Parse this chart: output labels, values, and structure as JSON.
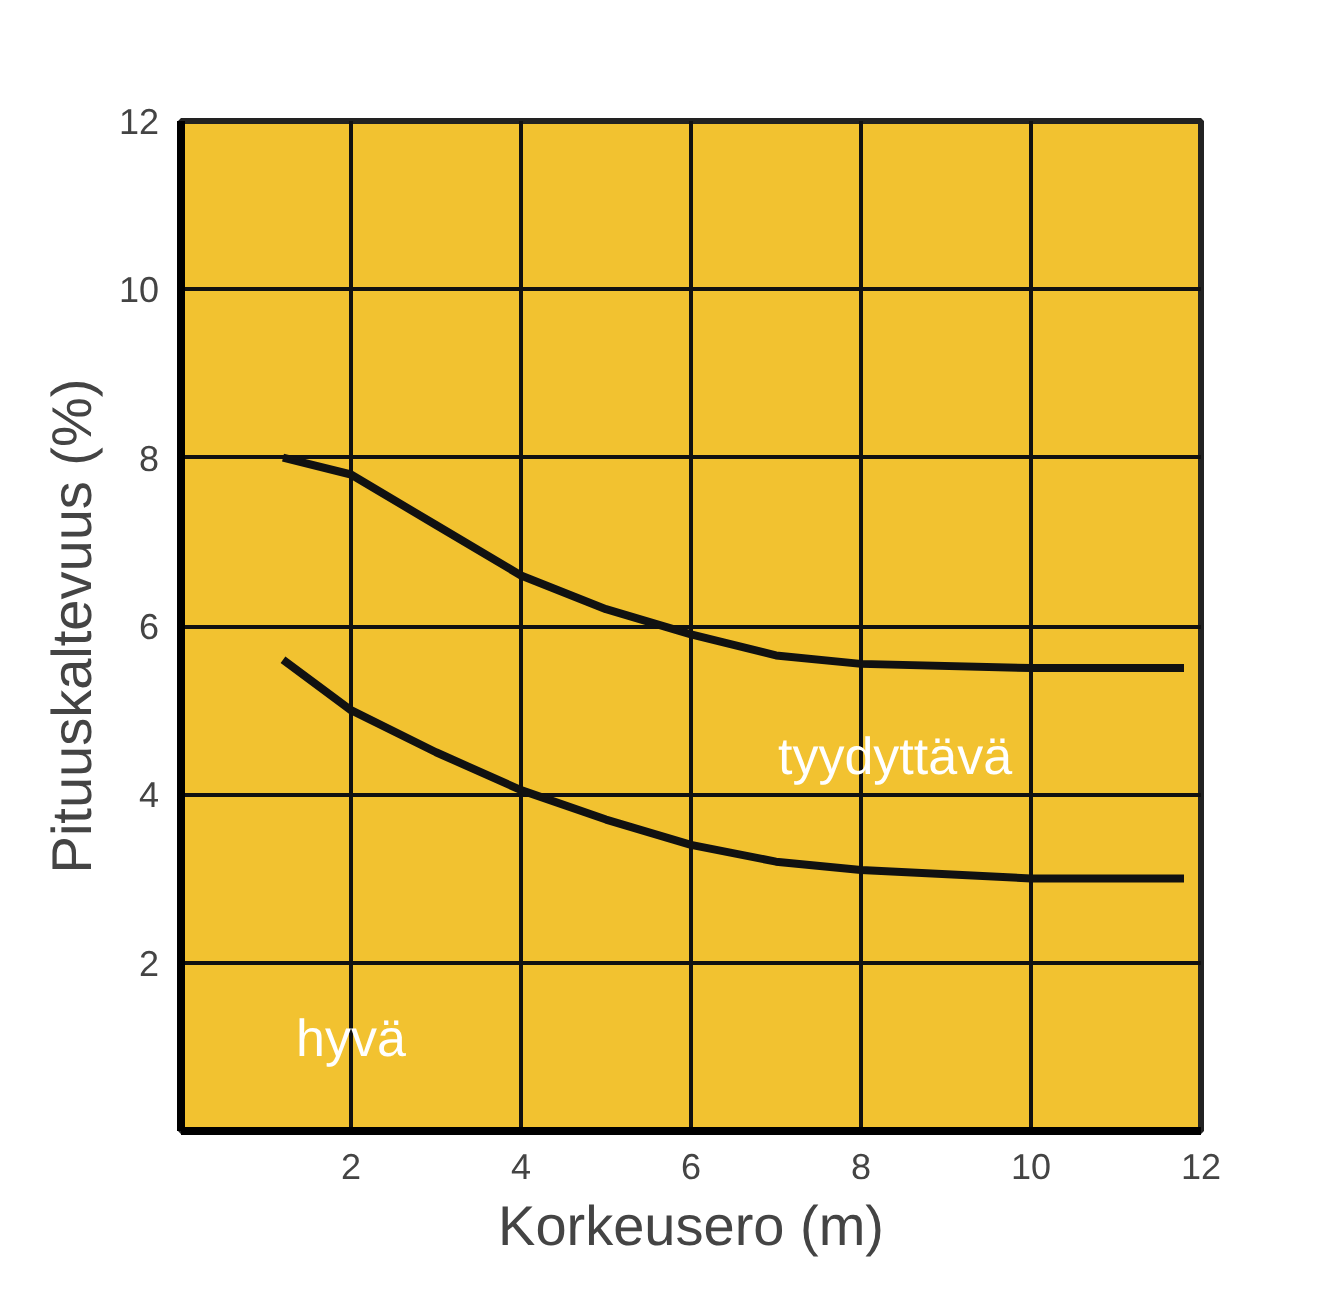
{
  "chart_data": {
    "type": "line",
    "xlabel": "Korkeusero (m)",
    "ylabel": "Pituuskaltevuus (%)",
    "xlim": [
      0,
      12
    ],
    "ylim": [
      0,
      12
    ],
    "xticks": [
      2,
      4,
      6,
      8,
      10,
      12
    ],
    "yticks": [
      2,
      4,
      6,
      8,
      10,
      12
    ],
    "grid": true,
    "marker": "none",
    "line_style": "solid",
    "series": [
      {
        "color": "#111111",
        "x": [
          1.2,
          2,
          3,
          4,
          5,
          6,
          7,
          8,
          10,
          11.8
        ],
        "values": [
          8.0,
          7.8,
          7.2,
          6.6,
          6.2,
          5.9,
          5.65,
          5.55,
          5.5,
          5.5
        ]
      },
      {
        "color": "#111111",
        "x": [
          1.2,
          2,
          3,
          4,
          5,
          6,
          7,
          8,
          10,
          11.8
        ],
        "values": [
          5.6,
          5.0,
          4.5,
          4.05,
          3.7,
          3.4,
          3.2,
          3.1,
          3.0,
          3.0
        ]
      }
    ],
    "annotations": [
      "tyydyttävä",
      "hyvä"
    ]
  }
}
